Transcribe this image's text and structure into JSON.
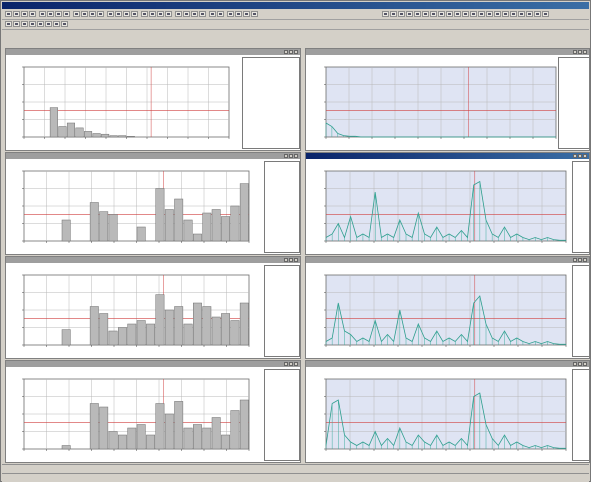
{
  "window": {
    "title": "",
    "menu": [
      "",
      "",
      "",
      "",
      "",
      "",
      "",
      "",
      ""
    ]
  },
  "panes": [
    {
      "id": "left-1",
      "kind": "bar",
      "title": "",
      "chart_title": "",
      "active": false,
      "side_lines": []
    },
    {
      "id": "right-1",
      "kind": "line",
      "title": "",
      "chart_title": "",
      "active": false,
      "side_lines": []
    },
    {
      "id": "left-2",
      "kind": "bar",
      "title": "",
      "chart_title": "",
      "active": false,
      "side_lines": []
    },
    {
      "id": "right-2",
      "kind": "line",
      "title": "",
      "chart_title": "",
      "active": true,
      "side_lines": []
    },
    {
      "id": "left-3",
      "kind": "bar",
      "title": "",
      "chart_title": "",
      "active": false,
      "side_lines": []
    },
    {
      "id": "right-3",
      "kind": "line",
      "title": "",
      "chart_title": "",
      "active": false,
      "side_lines": []
    },
    {
      "id": "left-4",
      "kind": "bar",
      "title": "",
      "chart_title": "",
      "active": false,
      "side_lines": []
    },
    {
      "id": "right-4",
      "kind": "line",
      "title": "",
      "chart_title": "",
      "active": false,
      "side_lines": []
    }
  ],
  "chart_data": [
    {
      "type": "bar",
      "series": [
        {
          "values": [
            0,
            0,
            0,
            0.42,
            0.15,
            0.2,
            0.13,
            0.08,
            0.05,
            0.04,
            0.02,
            0.02,
            0.01,
            0,
            0,
            0,
            0,
            0,
            0,
            0,
            0,
            0,
            0,
            0
          ]
        }
      ]
    },
    {
      "type": "line",
      "series": [
        {
          "values": [
            0.2,
            0.15,
            0.05,
            0.02,
            0.01,
            0.01,
            0,
            0,
            0,
            0,
            0,
            0,
            0,
            0,
            0,
            0,
            0,
            0,
            0,
            0,
            0,
            0,
            0,
            0,
            0,
            0,
            0,
            0,
            0,
            0,
            0,
            0,
            0,
            0,
            0,
            0,
            0,
            0,
            0,
            0
          ]
        }
      ]
    },
    {
      "type": "bar",
      "series": [
        {
          "values": [
            0,
            0,
            0,
            0,
            0.3,
            0,
            0,
            0.55,
            0.42,
            0.38,
            0,
            0,
            0.2,
            0,
            0.75,
            0.45,
            0.6,
            0.3,
            0.1,
            0.4,
            0.45,
            0.35,
            0.5,
            0.82
          ]
        }
      ]
    },
    {
      "type": "line",
      "series": [
        {
          "values": [
            0.05,
            0.1,
            0.25,
            0.05,
            0.35,
            0.05,
            0.1,
            0.05,
            0.7,
            0.05,
            0.1,
            0.05,
            0.3,
            0.1,
            0.05,
            0.4,
            0.1,
            0.05,
            0.2,
            0.05,
            0.1,
            0.05,
            0.15,
            0.05,
            0.8,
            0.85,
            0.3,
            0.1,
            0.05,
            0.2,
            0.05,
            0.1,
            0.05,
            0.02,
            0.05,
            0.02,
            0.05,
            0.02,
            0.01,
            0.01
          ]
        }
      ]
    },
    {
      "type": "bar",
      "series": [
        {
          "values": [
            0,
            0,
            0,
            0,
            0.22,
            0,
            0,
            0.55,
            0.45,
            0.2,
            0.25,
            0.3,
            0.35,
            0.3,
            0.72,
            0.5,
            0.55,
            0.3,
            0.6,
            0.55,
            0.4,
            0.45,
            0.35,
            0.6
          ]
        }
      ]
    },
    {
      "type": "line",
      "series": [
        {
          "values": [
            0.05,
            0.1,
            0.6,
            0.2,
            0.15,
            0.05,
            0.1,
            0.05,
            0.35,
            0.05,
            0.15,
            0.05,
            0.5,
            0.1,
            0.05,
            0.3,
            0.1,
            0.05,
            0.2,
            0.05,
            0.1,
            0.05,
            0.15,
            0.05,
            0.6,
            0.7,
            0.3,
            0.1,
            0.05,
            0.2,
            0.05,
            0.1,
            0.05,
            0.02,
            0.05,
            0.02,
            0.05,
            0.02,
            0.01,
            0.01
          ]
        }
      ]
    },
    {
      "type": "bar",
      "series": [
        {
          "values": [
            0,
            0,
            0,
            0,
            0.05,
            0,
            0,
            0.65,
            0.6,
            0.25,
            0.2,
            0.3,
            0.35,
            0.2,
            0.65,
            0.5,
            0.68,
            0.3,
            0.35,
            0.3,
            0.45,
            0.2,
            0.55,
            0.7
          ]
        }
      ]
    },
    {
      "type": "line",
      "series": [
        {
          "values": [
            0.05,
            0.65,
            0.7,
            0.2,
            0.1,
            0.05,
            0.1,
            0.05,
            0.25,
            0.05,
            0.15,
            0.05,
            0.3,
            0.1,
            0.05,
            0.2,
            0.1,
            0.05,
            0.2,
            0.05,
            0.1,
            0.05,
            0.15,
            0.05,
            0.75,
            0.8,
            0.35,
            0.15,
            0.05,
            0.2,
            0.05,
            0.1,
            0.05,
            0.02,
            0.05,
            0.02,
            0.05,
            0.02,
            0.01,
            0.01
          ]
        }
      ]
    }
  ]
}
